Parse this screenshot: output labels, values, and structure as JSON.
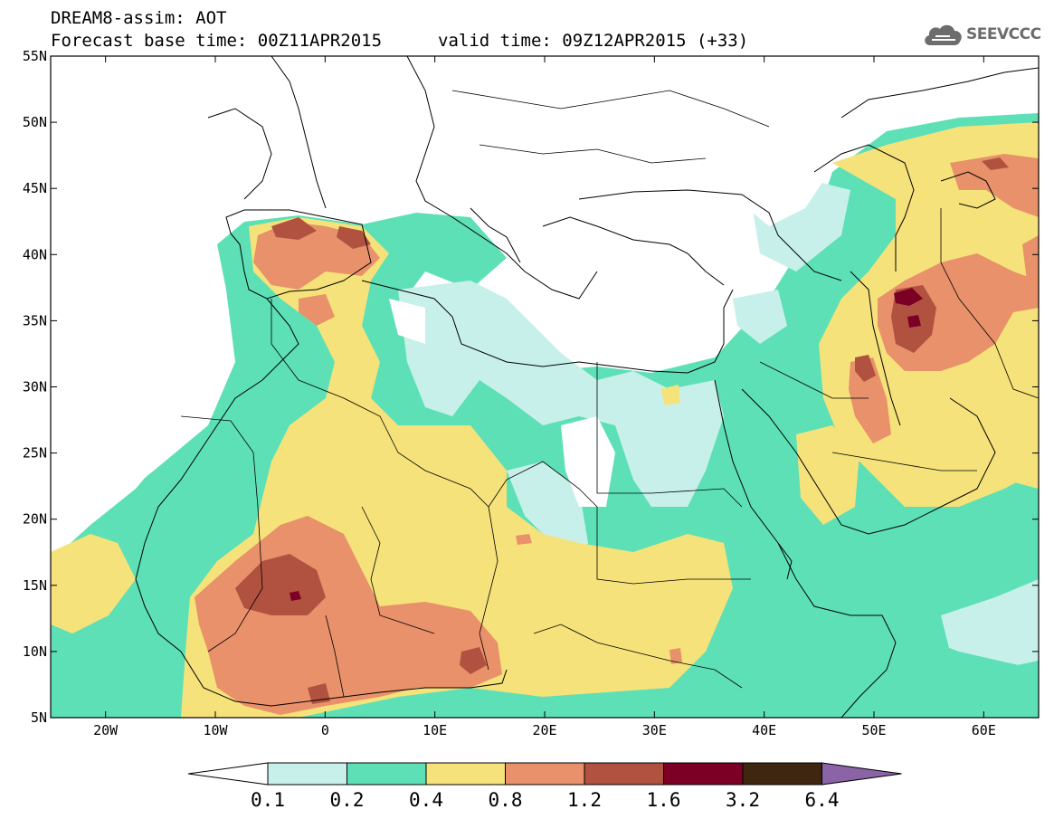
{
  "header": {
    "title_line1": "DREAM8-assim: AOT",
    "base_time": "Forecast base time: 00Z11APR2015",
    "valid_time": "valid time: 09Z12APR2015 (+33)",
    "logo_text": "SEEVCCC"
  },
  "map": {
    "lon_range": [
      -25,
      65
    ],
    "lat_range": [
      5,
      55
    ],
    "lat_ticks": [
      {
        "value": 55,
        "label": "55N"
      },
      {
        "value": 50,
        "label": "50N"
      },
      {
        "value": 45,
        "label": "45N"
      },
      {
        "value": 40,
        "label": "40N"
      },
      {
        "value": 35,
        "label": "35N"
      },
      {
        "value": 30,
        "label": "30N"
      },
      {
        "value": 25,
        "label": "25N"
      },
      {
        "value": 20,
        "label": "20N"
      },
      {
        "value": 15,
        "label": "15N"
      },
      {
        "value": 10,
        "label": "10N"
      },
      {
        "value": 5,
        "label": "5N"
      }
    ],
    "lon_ticks": [
      {
        "value": -20,
        "label": "20W"
      },
      {
        "value": -10,
        "label": "10W"
      },
      {
        "value": 0,
        "label": "0"
      },
      {
        "value": 10,
        "label": "10E"
      },
      {
        "value": 20,
        "label": "20E"
      },
      {
        "value": 30,
        "label": "30E"
      },
      {
        "value": 40,
        "label": "40E"
      },
      {
        "value": 50,
        "label": "50E"
      },
      {
        "value": 60,
        "label": "60E"
      }
    ]
  },
  "colorbar": {
    "levels": [
      "0.1",
      "0.2",
      "0.4",
      "0.8",
      "1.2",
      "1.6",
      "3.2",
      "6.4"
    ],
    "colors": {
      "below": "#ffffff",
      "c1": "#c8f0ea",
      "c2": "#5ee0b6",
      "c3": "#f6e27a",
      "c4": "#e8916a",
      "c5": "#b0523f",
      "c6": "#7c0026",
      "c7": "#3f2611",
      "above": "#8a64a6"
    }
  }
}
